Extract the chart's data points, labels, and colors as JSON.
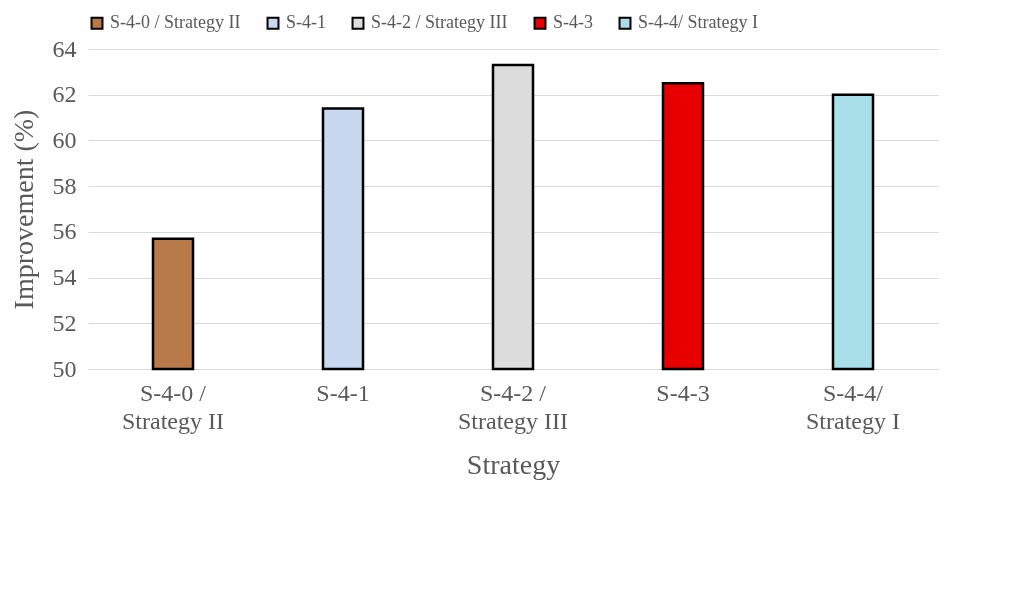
{
  "chart_data": {
    "type": "bar",
    "xlabel": "Strategy",
    "ylabel": "Improvement  (%)",
    "categories": [
      "S-4-0 / Strategy II",
      "S-4-1",
      "S-4-2 / Strategy III",
      "S-4-3",
      "S-4-4/ Strategy I"
    ],
    "series": [
      {
        "name": "S-4-0 / Strategy II",
        "color": "#b97a4a",
        "values": [
          55.7,
          null,
          null,
          null,
          null
        ]
      },
      {
        "name": "S-4-1",
        "color": "#c8d8f0",
        "values": [
          null,
          61.4,
          null,
          null,
          null
        ]
      },
      {
        "name": "S-4-2 / Strategy III",
        "color": "#dcdcdc",
        "values": [
          null,
          null,
          63.3,
          null,
          null
        ]
      },
      {
        "name": "S-4-3",
        "color": "#e80000",
        "values": [
          null,
          null,
          null,
          62.5,
          null
        ]
      },
      {
        "name": "S-4-4/ Strategy I",
        "color": "#a8dfe8",
        "values": [
          null,
          null,
          null,
          null,
          62.0
        ]
      }
    ],
    "ylim": [
      50,
      64
    ],
    "yticks": [
      50,
      52,
      54,
      56,
      58,
      60,
      62,
      64
    ],
    "grid": "y",
    "legend": "top"
  }
}
